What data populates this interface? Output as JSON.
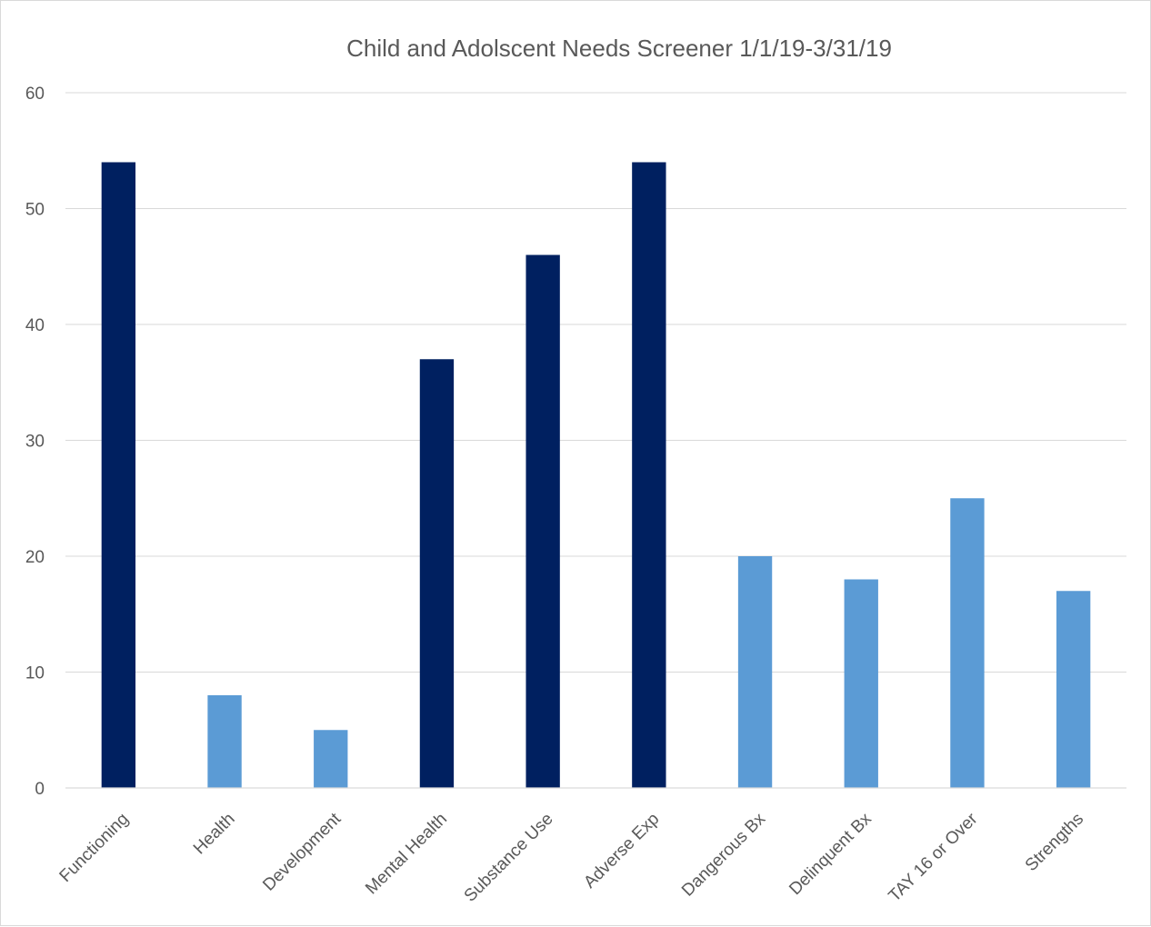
{
  "chart_data": {
    "type": "bar",
    "title": "Child and Adolscent Needs Screener 1/1/19-3/31/19",
    "xlabel": "",
    "ylabel": "",
    "ylim": [
      0,
      60
    ],
    "yticks": [
      0,
      10,
      20,
      30,
      40,
      50,
      60
    ],
    "grid": true,
    "legend": "none",
    "categories": [
      "Functioning",
      "Health",
      "Development",
      "Mental Health",
      "Substance Use",
      "Adverse Exp",
      "Dangerous Bx",
      "Delinquent Bx",
      "TAY 16 or Over",
      "Strengths"
    ],
    "values": [
      54,
      8,
      5,
      37,
      46,
      54,
      20,
      18,
      25,
      17
    ],
    "bar_colors": [
      "#002060",
      "#5b9bd5",
      "#5b9bd5",
      "#002060",
      "#002060",
      "#002060",
      "#5b9bd5",
      "#5b9bd5",
      "#5b9bd5",
      "#5b9bd5"
    ],
    "colors": {
      "dark_bar": "#002060",
      "light_bar": "#5b9bd5",
      "text": "#595959",
      "grid": "#d9d9d9"
    }
  }
}
